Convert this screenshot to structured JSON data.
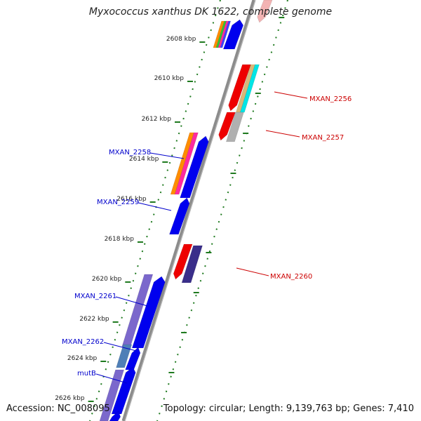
{
  "title": "Myxococcus xanthus DK 1622, complete genome",
  "footer": {
    "accession": "Accession: NC_008095",
    "summary": "Topology: circular; Length: 9,139,763 bp; Genes: 7,410"
  },
  "colors": {
    "backbone": "#8c8c8c",
    "tick": "#1f7a1f",
    "forward_gene": "#0000ee",
    "reverse_gene": "#ee0000",
    "forward_label": "#0000cc",
    "reverse_label": "#cc0000",
    "feature_band": "#7b68cc"
  },
  "ticks": [
    "2608 kbp",
    "2610 kbp",
    "2612 kbp",
    "2614 kbp",
    "2616 kbp",
    "2618 kbp",
    "2620 kbp",
    "2622 kbp",
    "2624 kbp",
    "2626 kbp"
  ],
  "forward_labels": [
    "MXAN_2258",
    "MXAN_2259",
    "MXAN_2261",
    "MXAN_2262",
    "mutB"
  ],
  "reverse_labels": [
    "MXAN_2256",
    "MXAN_2257",
    "MXAN_2260"
  ]
}
